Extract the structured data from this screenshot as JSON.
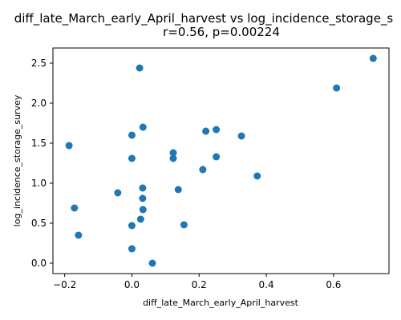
{
  "chart_data": {
    "type": "scatter",
    "title": "diff_late_March_early_April_harvest vs log_incidence_storage_s",
    "subtitle": "r=0.56, p=0.00224",
    "xlabel": "diff_late_March_early_April_harvest",
    "ylabel": "log_incidence_storage_survey",
    "xlim": [
      -0.235,
      0.765
    ],
    "ylim": [
      -0.13,
      2.69
    ],
    "x_ticks": [
      -0.2,
      0.0,
      0.2,
      0.4,
      0.6
    ],
    "x_tick_labels": [
      "−0.2",
      "0.0",
      "0.2",
      "0.4",
      "0.6"
    ],
    "y_ticks": [
      0.0,
      0.5,
      1.0,
      1.5,
      2.0,
      2.5
    ],
    "y_tick_labels": [
      "0.0",
      "0.5",
      "1.0",
      "1.5",
      "2.0",
      "2.5"
    ],
    "grid": false,
    "marker_color": "#1f77b4",
    "points": [
      {
        "x": 0.718,
        "y": 2.56
      },
      {
        "x": 0.609,
        "y": 2.19
      },
      {
        "x": 0.023,
        "y": 2.44
      },
      {
        "x": 0.033,
        "y": 1.7
      },
      {
        "x": 0.0,
        "y": 1.6
      },
      {
        "x": -0.187,
        "y": 1.47
      },
      {
        "x": 0.22,
        "y": 1.65
      },
      {
        "x": 0.251,
        "y": 1.67
      },
      {
        "x": 0.326,
        "y": 1.59
      },
      {
        "x": 0.123,
        "y": 1.38
      },
      {
        "x": 0.123,
        "y": 1.31
      },
      {
        "x": 0.0,
        "y": 1.31
      },
      {
        "x": 0.251,
        "y": 1.33
      },
      {
        "x": 0.211,
        "y": 1.17
      },
      {
        "x": 0.373,
        "y": 1.09
      },
      {
        "x": 0.032,
        "y": 0.94
      },
      {
        "x": 0.138,
        "y": 0.92
      },
      {
        "x": -0.042,
        "y": 0.88
      },
      {
        "x": 0.032,
        "y": 0.81
      },
      {
        "x": -0.171,
        "y": 0.69
      },
      {
        "x": 0.033,
        "y": 0.67
      },
      {
        "x": 0.026,
        "y": 0.55
      },
      {
        "x": 0.0,
        "y": 0.47
      },
      {
        "x": 0.155,
        "y": 0.48
      },
      {
        "x": -0.159,
        "y": 0.35
      },
      {
        "x": 0.0,
        "y": 0.18
      },
      {
        "x": 0.061,
        "y": 0.0
      }
    ]
  }
}
